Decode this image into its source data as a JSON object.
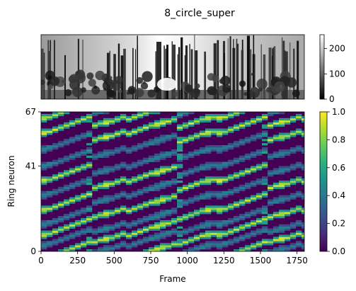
{
  "chart_data": [
    {
      "type": "image",
      "title": "8_circle_super",
      "description_colormap": "gray",
      "colorbar": {
        "range": [
          0,
          255
        ],
        "ticks": [
          0,
          100,
          200
        ],
        "tick_labels": [
          "0",
          "100",
          "200"
        ]
      },
      "xticks": [],
      "yticks": []
    },
    {
      "type": "heatmap",
      "colormap": "viridis",
      "xlabel": "Frame",
      "ylabel": "Ring neuron",
      "xlim": [
        0,
        1800
      ],
      "ylim": [
        0,
        67
      ],
      "xticks": [
        0,
        250,
        500,
        750,
        1000,
        1250,
        1500,
        1750
      ],
      "xtick_labels": [
        "0",
        "250",
        "500",
        "750",
        "1000",
        "1250",
        "1500",
        "1750"
      ],
      "yticks": [
        0,
        41,
        67
      ],
      "ytick_labels": [
        "0",
        "41",
        "67"
      ],
      "colorbar": {
        "range": [
          0,
          1
        ],
        "ticks": [
          0,
          0.2,
          0.4,
          0.6,
          0.8,
          1
        ],
        "tick_labels": [
          "0.0",
          "0.2",
          "0.4",
          "0.6",
          "0.8",
          "1.0"
        ]
      },
      "period_frames": 600,
      "stripe_slope_neurons_per_frame": 0.0233,
      "bright_stripe_offsets_neurons": [
        7,
        19,
        33,
        56,
        63
      ],
      "faint_stripe_offsets_neurons": [
        2,
        12,
        26,
        40,
        48
      ]
    }
  ]
}
